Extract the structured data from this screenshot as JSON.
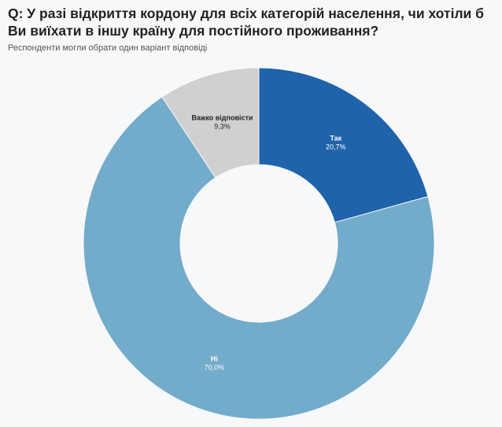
{
  "title": "Q: У разі відкриття кордону для всіх категорій населення, чи хотіли б Ви виїхати в іншу країну для постійного проживання?",
  "subtitle": "Респонденти могли обрати один варіант відповіді",
  "chart_data": {
    "type": "pie",
    "donut": true,
    "title": "Q: У разі відкриття кордону для всіх категорій населення, чи хотіли б Ви виїхати в іншу країну для постійного проживання?",
    "subtitle": "Респонденти могли обрати один варіант відповіді",
    "slices": [
      {
        "label": "Так",
        "value": 20.7,
        "display": "20,7%",
        "color": "#1f63ab",
        "text_color": "#ffffff"
      },
      {
        "label": "Ні",
        "value": 70.0,
        "display": "70,0%",
        "color": "#73abcb",
        "text_color": "#ffffff"
      },
      {
        "label": "Важко відповісти",
        "value": 9.3,
        "display": "9,3%",
        "color": "#d0d0d0",
        "text_color": "#222222"
      }
    ]
  }
}
